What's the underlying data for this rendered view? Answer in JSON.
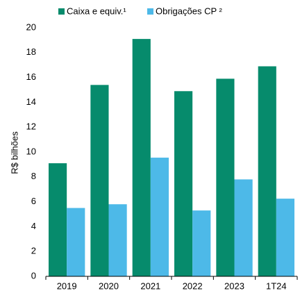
{
  "chart_data": {
    "type": "bar",
    "y_label": "R$ bilhões",
    "categories": [
      "2019",
      "2020",
      "2021",
      "2022",
      "2023",
      "1T24"
    ],
    "series": [
      {
        "name": "Caixa e equiv.¹",
        "color": "#068b6c",
        "values": [
          9.1,
          15.4,
          19.1,
          14.9,
          15.9,
          16.9
        ]
      },
      {
        "name": "Obrigações CP ²",
        "color": "#4db9e8",
        "values": [
          5.5,
          5.8,
          9.55,
          5.3,
          7.8,
          6.25
        ]
      }
    ],
    "ylim": [
      0,
      20
    ],
    "yticks": [
      0,
      2,
      4,
      6,
      8,
      10,
      12,
      14,
      16,
      18,
      20
    ],
    "grid": false,
    "legend": "top"
  }
}
